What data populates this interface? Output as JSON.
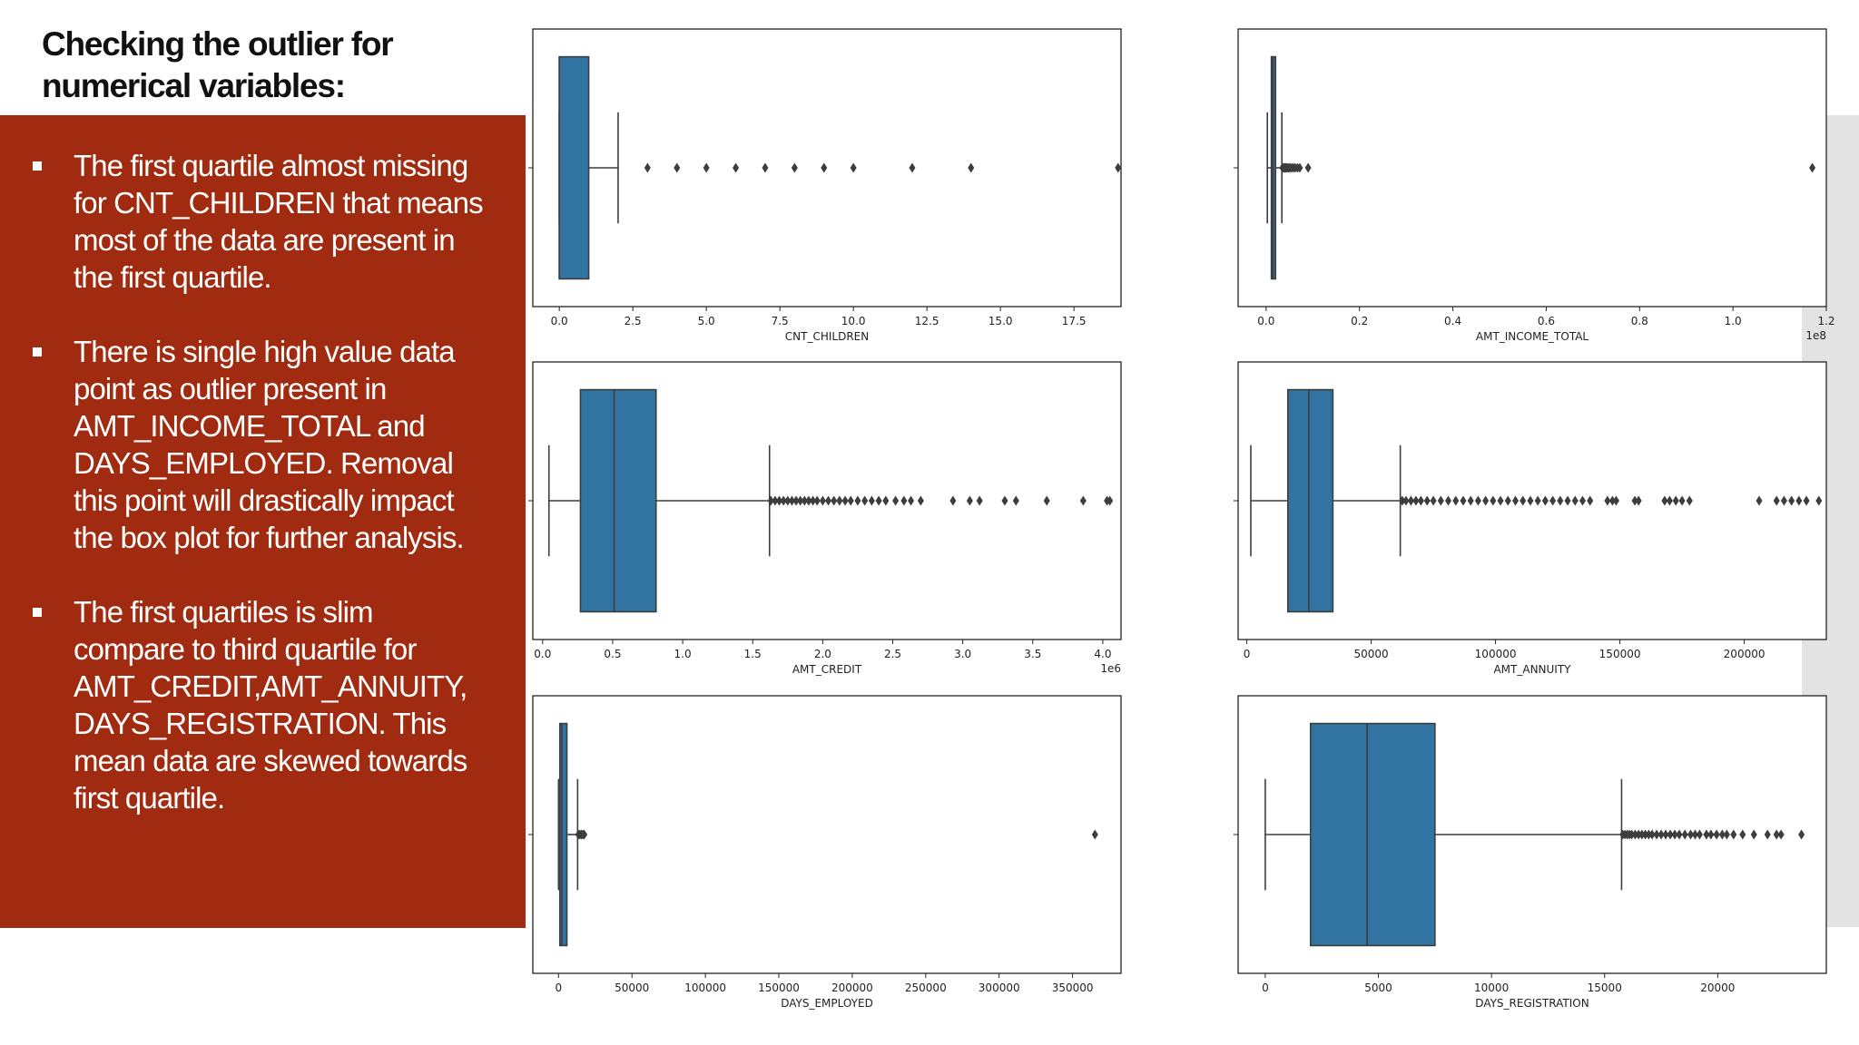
{
  "slide": {
    "title": "Checking the outlier for\nnumerical variables:",
    "panel_color": "#a12b10",
    "box_color": "#3274a1",
    "bullets": [
      "The first quartile almost missing\nfor CNT_CHILDREN that means\nmost of the data are present in\nthe first quartile.",
      "There is single high value data\npoint as outlier present in\nAMT_INCOME_TOTAL and\nDAYS_EMPLOYED. Removal\nthis point will drastically impact\nthe box plot for further analysis.",
      "The first quartiles is slim\ncompare to third quartile for\nAMT_CREDIT,AMT_ANNUITY,\nDAYS_REGISTRATION. This\nmean data are skewed towards\nfirst quartile."
    ]
  },
  "chart_data": [
    {
      "type": "box",
      "xlabel": "CNT_CHILDREN",
      "xlim": [
        -0.9,
        19.1
      ],
      "ticks": [
        0,
        2.5,
        5,
        7.5,
        10,
        12.5,
        15,
        17.5
      ],
      "tick_labels": [
        "0.0",
        "2.5",
        "5.0",
        "7.5",
        "10.0",
        "12.5",
        "15.0",
        "17.5"
      ],
      "offset_text": "",
      "whisker_low": 0,
      "q1": 0,
      "median": 0,
      "q3": 1,
      "whisker_high": 2,
      "outliers": [
        3,
        4,
        5,
        6,
        7,
        8,
        9,
        10,
        12,
        14,
        19
      ]
    },
    {
      "type": "box",
      "xlabel": "AMT_INCOME_TOTAL",
      "xlim": [
        -0.06,
        1.2
      ],
      "ticks": [
        0,
        0.2,
        0.4,
        0.6,
        0.8,
        1.0,
        1.2
      ],
      "tick_labels": [
        "0.0",
        "0.2",
        "0.4",
        "0.6",
        "0.8",
        "1.0",
        "1.2"
      ],
      "offset_text": "1e8",
      "whisker_low": 0.0026,
      "q1": 0.0112,
      "median": 0.0147,
      "q3": 0.0202,
      "whisker_high": 0.0337,
      "outliers": [
        0.035,
        0.037,
        0.039,
        0.041,
        0.043,
        0.045,
        0.048,
        0.051,
        0.054,
        0.058,
        0.062,
        0.067,
        0.072,
        0.09,
        1.17
      ]
    },
    {
      "type": "box",
      "xlabel": "AMT_CREDIT",
      "xlim": [
        -0.07,
        4.13
      ],
      "ticks": [
        0,
        0.5,
        1.0,
        1.5,
        2.0,
        2.5,
        3.0,
        3.5,
        4.0
      ],
      "tick_labels": [
        "0.0",
        "0.5",
        "1.0",
        "1.5",
        "2.0",
        "2.5",
        "3.0",
        "3.5",
        "4.0"
      ],
      "offset_text": "1e6",
      "whisker_low": 0.045,
      "q1": 0.27,
      "median": 0.51,
      "q3": 0.81,
      "whisker_high": 1.62,
      "outliers": [
        1.63,
        1.66,
        1.69,
        1.72,
        1.75,
        1.78,
        1.81,
        1.84,
        1.87,
        1.9,
        1.93,
        1.96,
        2.0,
        2.04,
        2.08,
        2.12,
        2.16,
        2.2,
        2.25,
        2.3,
        2.35,
        2.4,
        2.45,
        2.52,
        2.58,
        2.63,
        2.7,
        2.93,
        3.05,
        3.12,
        3.3,
        3.38,
        3.6,
        3.86,
        4.03,
        4.05
      ]
    },
    {
      "type": "box",
      "xlabel": "AMT_ANNUITY",
      "xlim": [
        -3500,
        233000
      ],
      "ticks": [
        0,
        50000,
        100000,
        150000,
        200000
      ],
      "tick_labels": [
        "0",
        "50000",
        "100000",
        "150000",
        "200000"
      ],
      "offset_text": "",
      "whisker_low": 1600,
      "q1": 16500,
      "median": 24900,
      "q3": 34600,
      "whisker_high": 61700,
      "outliers": [
        62500,
        64000,
        66000,
        68000,
        70000,
        72500,
        75000,
        78000,
        81000,
        84000,
        87000,
        90000,
        93000,
        96000,
        99000,
        102000,
        105000,
        108000,
        111000,
        114000,
        117000,
        120000,
        123000,
        126000,
        129000,
        132000,
        135000,
        138000,
        145000,
        147000,
        148500,
        156000,
        157500,
        168000,
        170000,
        172500,
        175000,
        178000,
        206000,
        213000,
        216000,
        219000,
        222000,
        225000,
        230000
      ]
    },
    {
      "type": "box",
      "xlabel": "DAYS_EMPLOYED",
      "xlim": [
        -17500,
        383000
      ],
      "ticks": [
        0,
        50000,
        100000,
        150000,
        200000,
        250000,
        300000,
        350000
      ],
      "tick_labels": [
        "0",
        "50000",
        "100000",
        "150000",
        "200000",
        "250000",
        "300000",
        "350000"
      ],
      "offset_text": "",
      "whisker_low": 0,
      "q1": 900,
      "median": 2200,
      "q3": 5700,
      "whisker_high": 13000,
      "outliers": [
        13500,
        14500,
        15500,
        16500,
        17500,
        365243
      ]
    },
    {
      "type": "box",
      "xlabel": "DAYS_REGISTRATION",
      "xlim": [
        -1200,
        24800
      ],
      "ticks": [
        0,
        5000,
        10000,
        15000,
        20000
      ],
      "tick_labels": [
        "0",
        "5000",
        "10000",
        "15000",
        "20000"
      ],
      "offset_text": "",
      "whisker_low": 0,
      "q1": 2000,
      "median": 4500,
      "q3": 7500,
      "whisker_high": 15750,
      "outliers": [
        15800,
        15900,
        16000,
        16100,
        16200,
        16350,
        16500,
        16650,
        16800,
        16950,
        17100,
        17300,
        17500,
        17700,
        17900,
        18100,
        18300,
        18550,
        18800,
        19000,
        19200,
        19500,
        19700,
        19950,
        20200,
        20400,
        20700,
        21100,
        21600,
        22200,
        22600,
        22800,
        23700
      ]
    }
  ]
}
